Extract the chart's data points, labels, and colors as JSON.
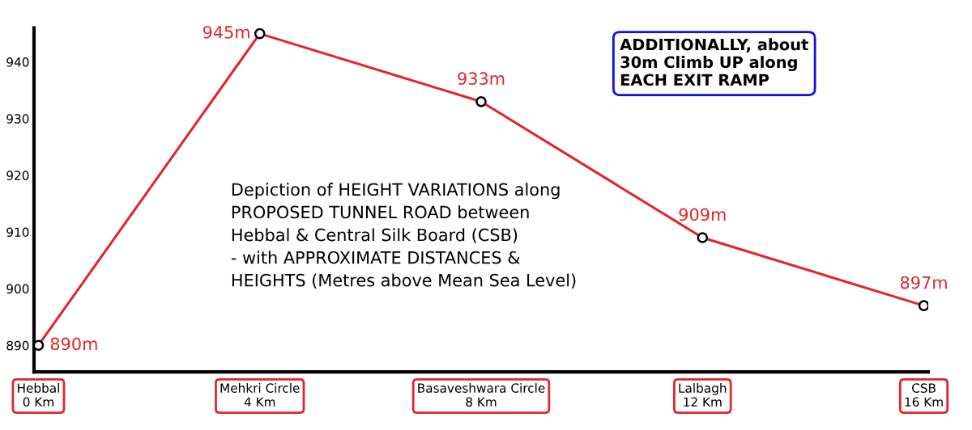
{
  "chart_data": {
    "type": "line",
    "categories": [
      "Hebbal\n0 Km",
      "Mehkri Circle\n4 Km",
      "Basaveshwara Circle\n8 Km",
      "Lalbagh\n12 Km",
      "CSB\n16 Km"
    ],
    "series": [
      {
        "color": "#e0262b",
        "values": [
          890,
          945,
          933,
          909,
          897
        ],
        "value_labels": [
          "890m",
          "945m",
          "933m",
          "909m",
          "897m"
        ]
      }
    ],
    "ylim": [
      885.3,
      946
    ],
    "yticks": [
      890,
      900,
      910,
      920,
      930,
      940
    ],
    "marker": "circle",
    "grid": false,
    "legend": false,
    "annotations": [
      "ADDITIONALLY, about\n30m Climb UP along\nEACH EXIT RAMP",
      "Depiction of HEIGHT VARIATIONS along\nPROPOSED TUNNEL ROAD between\nHebbal & Central Silk Board (CSB)\n- with APPROXIMATE DISTANCES &\nHEIGHTS (Metres above Mean Sea Level)"
    ]
  }
}
